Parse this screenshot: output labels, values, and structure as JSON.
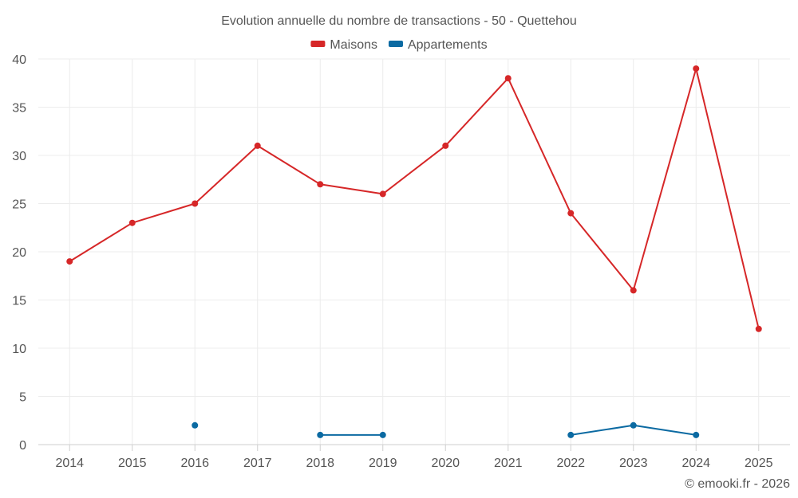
{
  "chart_data": {
    "type": "line",
    "title": "Evolution annuelle du nombre de transactions - 50 - Quettehou",
    "categories": [
      "2014",
      "2015",
      "2016",
      "2017",
      "2018",
      "2019",
      "2020",
      "2021",
      "2022",
      "2023",
      "2024",
      "2025"
    ],
    "series": [
      {
        "name": "Maisons",
        "color": "#d62728",
        "values": [
          19,
          23,
          25,
          31,
          27,
          26,
          31,
          38,
          24,
          16,
          39,
          12
        ]
      },
      {
        "name": "Appartements",
        "color": "#0b6aa2",
        "values": [
          null,
          null,
          2,
          null,
          1,
          1,
          null,
          null,
          1,
          2,
          1,
          null
        ]
      }
    ],
    "ylim": [
      0,
      40
    ],
    "yticks": [
      0,
      5,
      10,
      15,
      20,
      25,
      30,
      35,
      40
    ],
    "xlabel": "",
    "ylabel": "",
    "grid": true,
    "legend_position": "top-center"
  },
  "credit": "© emooki.fr - 2026"
}
